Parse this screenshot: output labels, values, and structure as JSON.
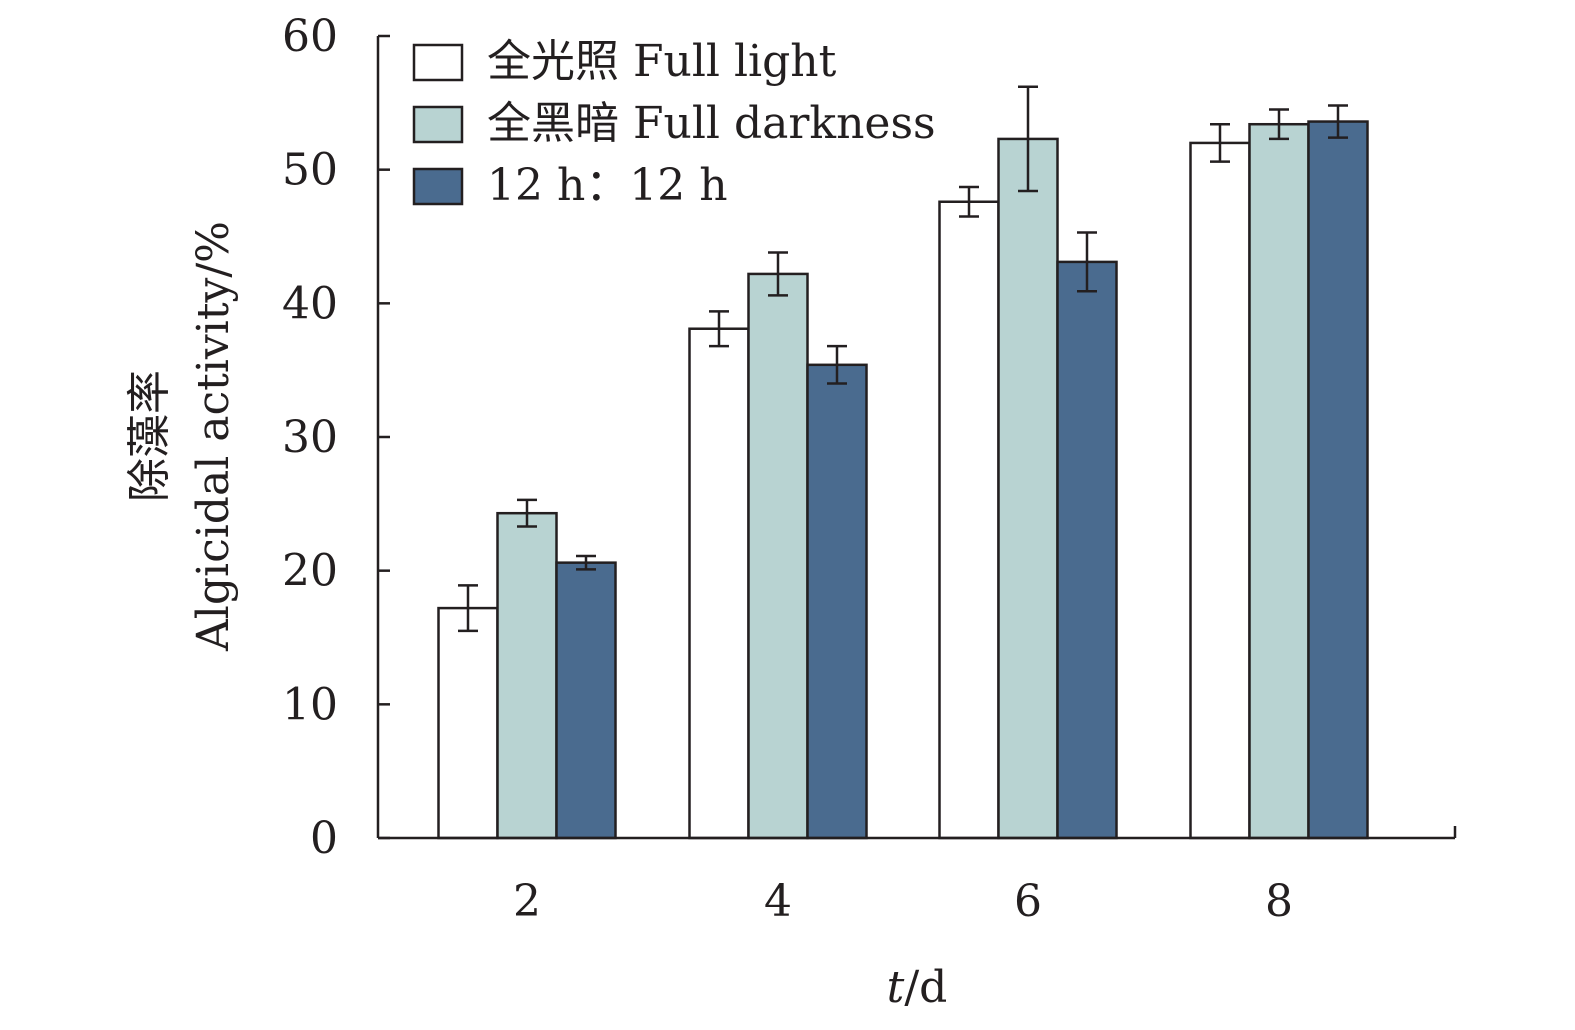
{
  "chart_data": {
    "type": "bar",
    "categories": [
      "2",
      "4",
      "6",
      "8"
    ],
    "series": [
      {
        "name": "全光照 Full light",
        "color": "#ffffff",
        "values": [
          17.2,
          38.1,
          47.6,
          52.0
        ],
        "errors": [
          1.7,
          1.3,
          1.1,
          1.4
        ]
      },
      {
        "name": "全黑暗 Full darkness",
        "color": "#b8d3d2",
        "values": [
          24.3,
          42.2,
          52.3,
          53.4
        ],
        "errors": [
          1.0,
          1.6,
          3.9,
          1.1
        ]
      },
      {
        "name": "12 h：12 h",
        "color": "#4a6b8f",
        "values": [
          20.6,
          35.4,
          43.1,
          53.6
        ],
        "errors": [
          0.5,
          1.4,
          2.2,
          1.2
        ]
      }
    ],
    "xlabel_italic": "t",
    "xlabel_rest": "/d",
    "ylabel_cn": "除藻率",
    "ylabel_en": "Algicidal activity/%",
    "ylim": [
      0,
      60
    ],
    "yticks": [
      "0",
      "10",
      "20",
      "30",
      "40",
      "50",
      "60"
    ],
    "legend_position": "top-left",
    "grid": false
  }
}
